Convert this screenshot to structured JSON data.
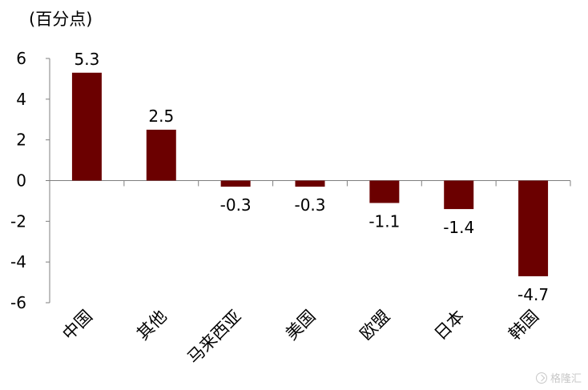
{
  "chart_data": {
    "type": "bar",
    "ylabel": "(百分点)",
    "categories": [
      "中国",
      "其他",
      "马来西亚",
      "美国",
      "欧盟",
      "日本",
      "韩国"
    ],
    "values": [
      5.3,
      2.5,
      -0.3,
      -0.3,
      -1.1,
      -1.4,
      -4.7
    ],
    "value_labels": [
      "5.3",
      "2.5",
      "-0.3",
      "-0.3",
      "-1.1",
      "-1.4",
      "-4.7"
    ],
    "ylim": [
      -6,
      6
    ],
    "yticks": [
      6,
      4,
      2,
      0,
      -2,
      -4,
      -6
    ],
    "ytick_labels": [
      "6",
      "4",
      "2",
      "0",
      "-2",
      "-4",
      "-6"
    ],
    "grid": false,
    "colors": {
      "bar": "#6b0000",
      "axis": "#7f7f7f",
      "text": "#000000"
    }
  },
  "watermark": {
    "text": "格隆汇"
  }
}
